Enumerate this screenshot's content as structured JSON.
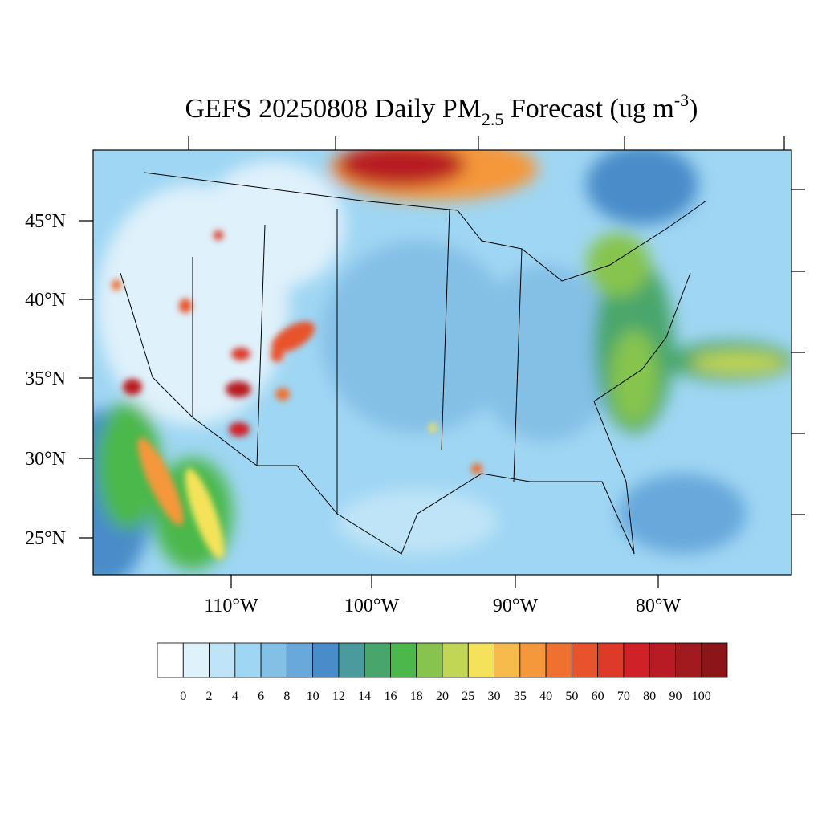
{
  "title": {
    "main": "GEFS 20250808 Daily PM",
    "sub": "2.5",
    "mid": " Forecast (ug m",
    "sup": "-3",
    "end": ")"
  },
  "lat_labels": [
    "45°N",
    "40°N",
    "35°N",
    "30°N",
    "25°N"
  ],
  "lon_labels": [
    "110°W",
    "100°W",
    "90°W",
    "80°W"
  ],
  "colorbar": {
    "levels": [
      0,
      2,
      4,
      6,
      8,
      10,
      12,
      14,
      16,
      18,
      20,
      25,
      30,
      35,
      40,
      50,
      60,
      70,
      80,
      90,
      100
    ],
    "colors": [
      "#ffffff",
      "#dff1fb",
      "#bfe4f7",
      "#9fd6f3",
      "#84bfe6",
      "#68a8db",
      "#4a8cc9",
      "#4a9a9e",
      "#48a66c",
      "#4cb84c",
      "#86c44e",
      "#c2d655",
      "#f4e35a",
      "#f6bb4a",
      "#f5973b",
      "#f07030",
      "#e8522c",
      "#dd3a2a",
      "#d02028",
      "#b81b23",
      "#a2191e",
      "#8b1519"
    ]
  }
}
